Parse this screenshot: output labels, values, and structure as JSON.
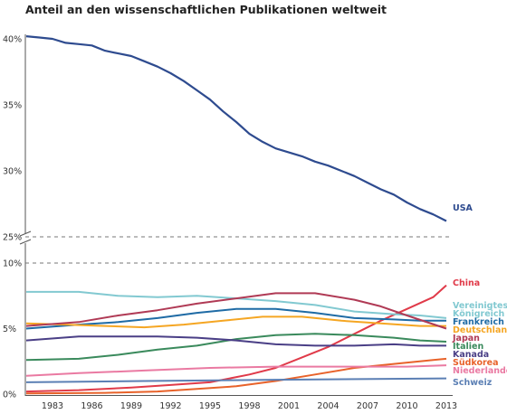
{
  "chart_data": {
    "type": "line",
    "title": "Anteil an den wissenschaftlichen Publikationen weltweit",
    "xlabel": "",
    "ylabel": "",
    "x_ticks": [
      1983,
      1986,
      1989,
      1992,
      1995,
      1998,
      2001,
      2004,
      2007,
      2010,
      2013
    ],
    "xlim": [
      1981,
      2013
    ],
    "axis_break": true,
    "upper_panel": {
      "ylim": [
        25,
        41
      ],
      "ticks": [
        25,
        30,
        35,
        40
      ],
      "tick_labels": [
        "25%",
        "30%",
        "35%",
        "40%"
      ]
    },
    "lower_panel": {
      "ylim": [
        0,
        10
      ],
      "ticks": [
        0,
        5,
        10
      ],
      "tick_labels": [
        "0%",
        "5%",
        "10%"
      ]
    },
    "grid": false,
    "legend": "labels at right end of each line",
    "series": [
      {
        "name": "USA",
        "panel": "upper",
        "color": "#2e4b8f",
        "points": [
          [
            1981,
            40.2
          ],
          [
            1982,
            40.1
          ],
          [
            1983,
            40.0
          ],
          [
            1984,
            39.7
          ],
          [
            1985,
            39.6
          ],
          [
            1986,
            39.5
          ],
          [
            1987,
            39.1
          ],
          [
            1988,
            38.9
          ],
          [
            1989,
            38.7
          ],
          [
            1990,
            38.3
          ],
          [
            1991,
            37.9
          ],
          [
            1992,
            37.4
          ],
          [
            1993,
            36.8
          ],
          [
            1994,
            36.1
          ],
          [
            1995,
            35.4
          ],
          [
            1996,
            34.5
          ],
          [
            1997,
            33.7
          ],
          [
            1998,
            32.8
          ],
          [
            1999,
            32.2
          ],
          [
            2000,
            31.7
          ],
          [
            2001,
            31.4
          ],
          [
            2002,
            31.1
          ],
          [
            2003,
            30.7
          ],
          [
            2004,
            30.4
          ],
          [
            2005,
            30.0
          ],
          [
            2006,
            29.6
          ],
          [
            2007,
            29.1
          ],
          [
            2008,
            28.6
          ],
          [
            2009,
            28.2
          ],
          [
            2010,
            27.6
          ],
          [
            2011,
            27.1
          ],
          [
            2012,
            26.7
          ],
          [
            2013,
            26.2
          ]
        ]
      },
      {
        "name": "China",
        "panel": "lower",
        "color": "#e03a49",
        "points": [
          [
            1981,
            0.2
          ],
          [
            1985,
            0.3
          ],
          [
            1989,
            0.5
          ],
          [
            1992,
            0.7
          ],
          [
            1995,
            0.9
          ],
          [
            1998,
            1.5
          ],
          [
            2000,
            2.0
          ],
          [
            2002,
            2.8
          ],
          [
            2004,
            3.6
          ],
          [
            2006,
            4.6
          ],
          [
            2008,
            5.6
          ],
          [
            2010,
            6.5
          ],
          [
            2012,
            7.4
          ],
          [
            2013,
            8.3
          ]
        ]
      },
      {
        "name": "Vereinigtes Königreich",
        "panel": "lower",
        "color": "#82c9d1",
        "points": [
          [
            1981,
            7.8
          ],
          [
            1985,
            7.8
          ],
          [
            1988,
            7.5
          ],
          [
            1991,
            7.4
          ],
          [
            1994,
            7.5
          ],
          [
            1997,
            7.3
          ],
          [
            2000,
            7.1
          ],
          [
            2003,
            6.8
          ],
          [
            2006,
            6.3
          ],
          [
            2009,
            6.1
          ],
          [
            2011,
            6.0
          ],
          [
            2013,
            5.8
          ]
        ]
      },
      {
        "name": "Frankreich",
        "panel": "lower",
        "color": "#1f6ba5",
        "points": [
          [
            1981,
            5.0
          ],
          [
            1985,
            5.3
          ],
          [
            1988,
            5.5
          ],
          [
            1991,
            5.8
          ],
          [
            1994,
            6.2
          ],
          [
            1997,
            6.5
          ],
          [
            2000,
            6.5
          ],
          [
            2003,
            6.2
          ],
          [
            2006,
            5.8
          ],
          [
            2009,
            5.7
          ],
          [
            2011,
            5.6
          ],
          [
            2013,
            5.6
          ]
        ]
      },
      {
        "name": "Deutschland",
        "panel": "lower",
        "color": "#f5a623",
        "points": [
          [
            1981,
            5.4
          ],
          [
            1984,
            5.3
          ],
          [
            1987,
            5.2
          ],
          [
            1990,
            5.1
          ],
          [
            1993,
            5.3
          ],
          [
            1996,
            5.6
          ],
          [
            1999,
            5.9
          ],
          [
            2002,
            5.9
          ],
          [
            2005,
            5.6
          ],
          [
            2008,
            5.4
          ],
          [
            2011,
            5.2
          ],
          [
            2013,
            5.2
          ]
        ]
      },
      {
        "name": "Japan",
        "panel": "lower",
        "color": "#b03a55",
        "points": [
          [
            1981,
            5.2
          ],
          [
            1985,
            5.5
          ],
          [
            1988,
            6.0
          ],
          [
            1991,
            6.4
          ],
          [
            1994,
            6.9
          ],
          [
            1997,
            7.3
          ],
          [
            2000,
            7.7
          ],
          [
            2003,
            7.7
          ],
          [
            2006,
            7.2
          ],
          [
            2008,
            6.7
          ],
          [
            2010,
            6.0
          ],
          [
            2013,
            5.0
          ]
        ]
      },
      {
        "name": "Italien",
        "panel": "lower",
        "color": "#3a8a5c",
        "points": [
          [
            1981,
            2.6
          ],
          [
            1985,
            2.7
          ],
          [
            1988,
            3.0
          ],
          [
            1991,
            3.4
          ],
          [
            1994,
            3.7
          ],
          [
            1997,
            4.2
          ],
          [
            2000,
            4.5
          ],
          [
            2003,
            4.6
          ],
          [
            2006,
            4.5
          ],
          [
            2009,
            4.3
          ],
          [
            2011,
            4.1
          ],
          [
            2013,
            4.0
          ]
        ]
      },
      {
        "name": "Kanada",
        "panel": "lower",
        "color": "#4a3f86",
        "points": [
          [
            1981,
            4.1
          ],
          [
            1985,
            4.4
          ],
          [
            1988,
            4.4
          ],
          [
            1991,
            4.4
          ],
          [
            1994,
            4.3
          ],
          [
            1997,
            4.1
          ],
          [
            2000,
            3.8
          ],
          [
            2003,
            3.7
          ],
          [
            2006,
            3.7
          ],
          [
            2009,
            3.8
          ],
          [
            2011,
            3.7
          ],
          [
            2013,
            3.7
          ]
        ]
      },
      {
        "name": "Südkorea",
        "panel": "lower",
        "color": "#e8622a",
        "points": [
          [
            1981,
            0.05
          ],
          [
            1987,
            0.1
          ],
          [
            1991,
            0.2
          ],
          [
            1994,
            0.4
          ],
          [
            1997,
            0.6
          ],
          [
            2000,
            1.0
          ],
          [
            2003,
            1.5
          ],
          [
            2006,
            2.0
          ],
          [
            2009,
            2.3
          ],
          [
            2012,
            2.6
          ],
          [
            2013,
            2.7
          ]
        ]
      },
      {
        "name": "Niederlande",
        "panel": "lower",
        "color": "#ea7aa2",
        "points": [
          [
            1981,
            1.4
          ],
          [
            1985,
            1.6
          ],
          [
            1990,
            1.8
          ],
          [
            1995,
            2.0
          ],
          [
            2000,
            2.1
          ],
          [
            2005,
            2.1
          ],
          [
            2010,
            2.1
          ],
          [
            2013,
            2.2
          ]
        ]
      },
      {
        "name": "Schweiz",
        "panel": "lower",
        "color": "#5b7fb4",
        "points": [
          [
            1981,
            0.9
          ],
          [
            1990,
            1.0
          ],
          [
            2000,
            1.1
          ],
          [
            2013,
            1.2
          ]
        ]
      }
    ]
  },
  "series_labels": {
    "usa": "USA",
    "china": "China",
    "uk_line1": "Vereinigtes",
    "uk_line2": "Königreich",
    "france": "Frankreich",
    "germany": "Deutschland",
    "japan": "Japan",
    "italy": "Italien",
    "canada": "Kanada",
    "korea": "Südkorea",
    "netherlands": "Niederlande",
    "switzerland": "Schweiz"
  },
  "colors": {
    "axis": "#555555",
    "text": "#333333"
  }
}
